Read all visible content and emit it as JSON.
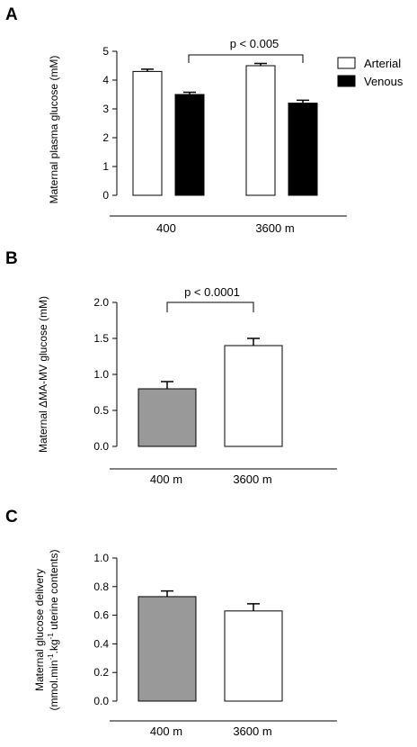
{
  "chart_data": [
    {
      "panel": "A",
      "type": "bar",
      "ylabel": "Maternal plasma glucose (mM)",
      "ylim": [
        0,
        5
      ],
      "yticks": [
        "0",
        "1",
        "2",
        "3",
        "4",
        "5"
      ],
      "categories": [
        "400",
        "3600 m"
      ],
      "series": [
        {
          "name": "Arterial",
          "color": "#ffffff",
          "values": [
            4.3,
            4.5
          ],
          "errors": [
            0.08,
            0.08
          ]
        },
        {
          "name": "Venous",
          "color": "#000000",
          "values": [
            3.5,
            3.2
          ],
          "errors": [
            0.08,
            0.1
          ]
        }
      ],
      "legend": "top-right",
      "annotation": "p < 0.005"
    },
    {
      "panel": "B",
      "type": "bar",
      "ylabel_prefix": "Maternal ",
      "ylabel_delta": "Δ",
      "ylabel_rest": "MA-MV glucose (mM)",
      "ylim": [
        0,
        2
      ],
      "yticks": [
        "0.0",
        "0.5",
        "1.0",
        "1.5",
        "2.0"
      ],
      "categories": [
        "400 m",
        "3600 m"
      ],
      "values": [
        0.8,
        1.4
      ],
      "errors": [
        0.1,
        0.1
      ],
      "colors": [
        "#999999",
        "#ffffff"
      ],
      "annotation": "p < 0.0001"
    },
    {
      "panel": "C",
      "type": "bar",
      "ylabel_line1": "Maternal glucose delivery",
      "ylabel_line2_a": "(mmol.min",
      "ylabel_line2_b": "-1",
      "ylabel_line2_c": ".kg",
      "ylabel_line2_d": "-1",
      "ylabel_line2_e": " uterine contents)",
      "ylim": [
        0,
        1
      ],
      "yticks": [
        "0.0",
        "0.2",
        "0.4",
        "0.6",
        "0.8",
        "1.0"
      ],
      "categories": [
        "400 m",
        "3600 m"
      ],
      "values": [
        0.73,
        0.63
      ],
      "errors": [
        0.04,
        0.05
      ],
      "colors": [
        "#999999",
        "#ffffff"
      ]
    }
  ]
}
